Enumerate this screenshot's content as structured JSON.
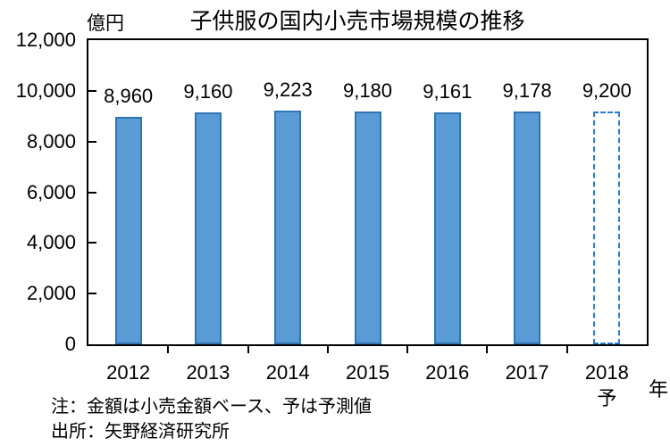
{
  "chart_data": {
    "type": "bar",
    "title": "子供服の国内小売市場規模の推移",
    "ylabel": "億円",
    "xlabel": "年",
    "categories": [
      "2012",
      "2013",
      "2014",
      "2015",
      "2016",
      "2017",
      "2018\n予"
    ],
    "values": [
      8960,
      9160,
      9223,
      9180,
      9161,
      9178,
      9200
    ],
    "data_labels": [
      "8,960",
      "9,160",
      "9,223",
      "9,180",
      "9,161",
      "9,178",
      "9,200"
    ],
    "forecast_index": 6,
    "ylim": [
      0,
      12000
    ],
    "ytick_step": 2000,
    "ytick_labels": [
      "0",
      "2,000",
      "4,000",
      "6,000",
      "8,000",
      "10,000",
      "12,000"
    ],
    "grid": false,
    "legend": "none",
    "bar_style": {
      "fill": "#5B9BD5",
      "border": "#2E75B6",
      "forecast_border": "#2B7CD3"
    }
  },
  "notes": {
    "note": "注：金額は小売金額ベース、予は予測値",
    "source": "出所：矢野経済研究所"
  }
}
